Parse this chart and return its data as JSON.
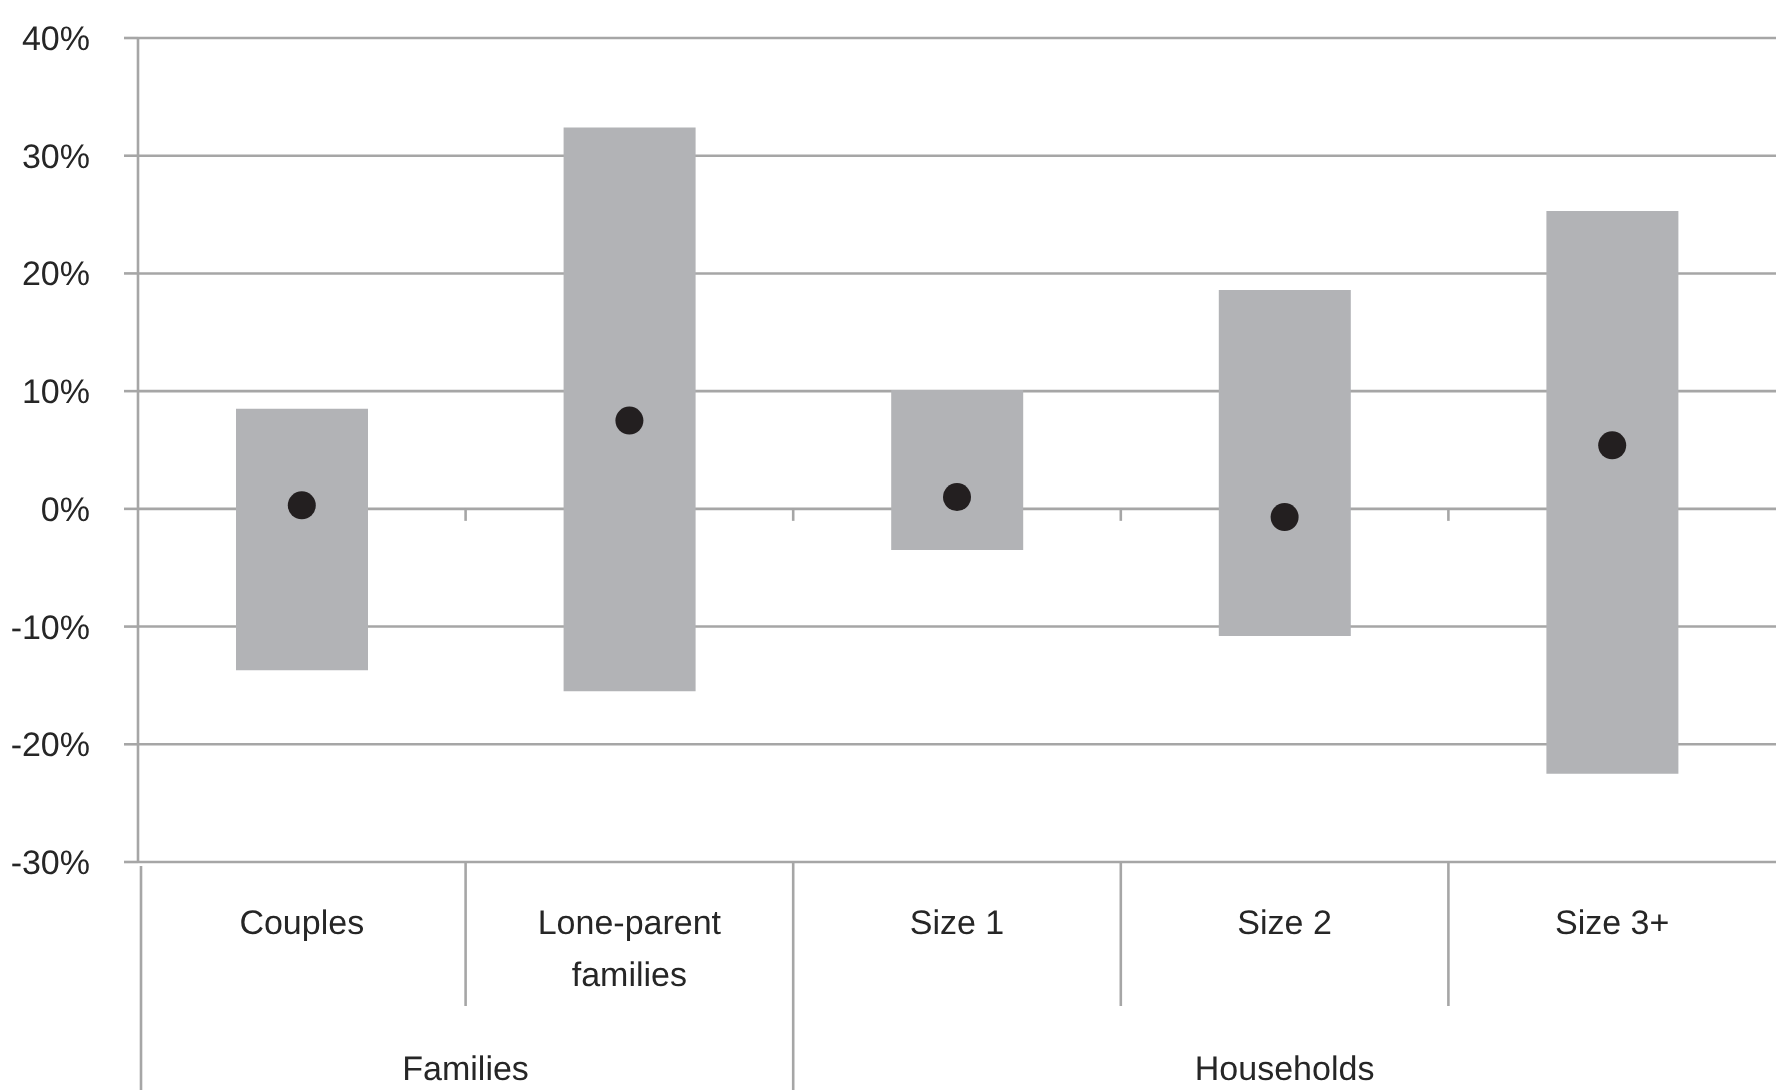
{
  "chart_data": {
    "type": "bar",
    "categories": [
      "Couples",
      "Lone-parent families",
      "Size 1",
      "Size 2",
      "Size 3+"
    ],
    "series": [
      {
        "color": "#b2b3b6",
        "base": [
          -13.7,
          -15.5,
          -3.5,
          -10.8,
          -22.5
        ],
        "values": [
          22.2,
          47.9,
          13.6,
          29.4,
          47.8
        ]
      },
      {
        "type": "scatter",
        "color": "#231f20",
        "marker": "circle",
        "x": [
          "Couples",
          "Lone-parent families",
          "Size 1",
          "Size 2",
          "Size 3+"
        ],
        "values": [
          0.3,
          7.5,
          1.0,
          -0.7,
          5.4
        ]
      }
    ],
    "ylim": [
      -30,
      40
    ],
    "yticks": [
      {
        "value": -30,
        "label": "-30%"
      },
      {
        "value": -20,
        "label": "-20%"
      },
      {
        "value": -10,
        "label": "-10%"
      },
      {
        "value": 0,
        "label": "0%"
      },
      {
        "value": 10,
        "label": "10%"
      },
      {
        "value": 20,
        "label": "20%"
      },
      {
        "value": 30,
        "label": "30%"
      },
      {
        "value": 40,
        "label": "40%"
      }
    ],
    "grid": "y",
    "annotations": [
      "Families",
      "Households"
    ]
  }
}
